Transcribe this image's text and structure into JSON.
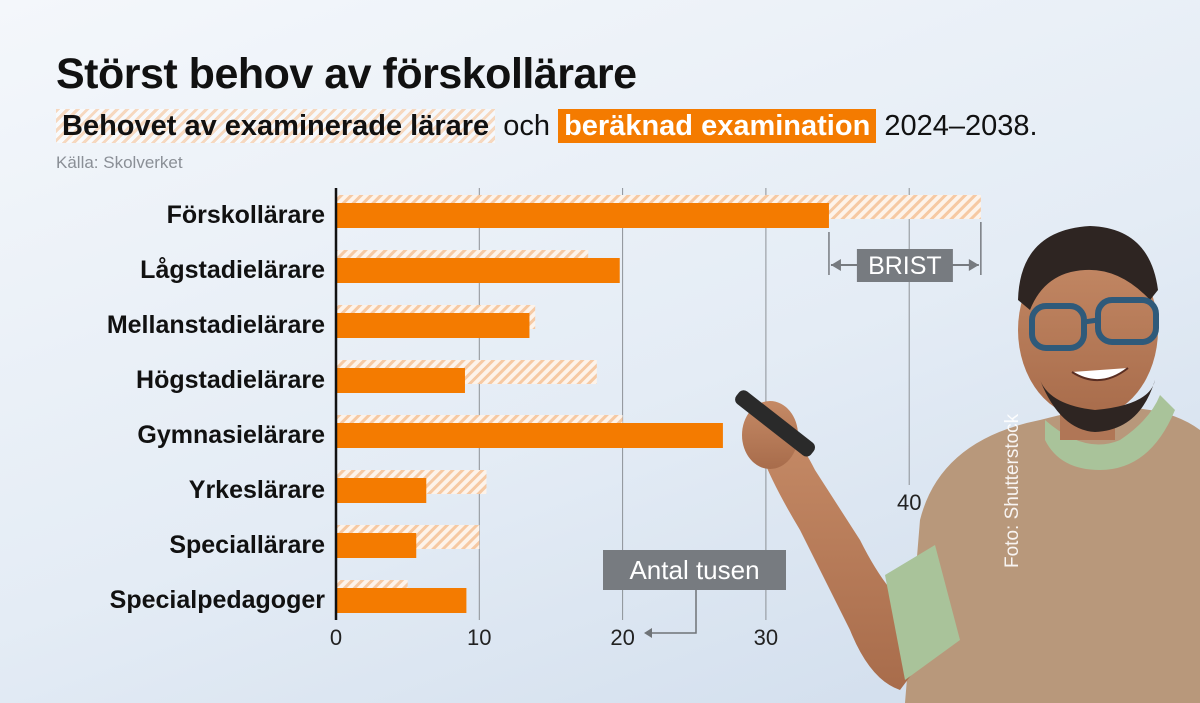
{
  "title": "Störst behov av förskollärare",
  "subtitle": {
    "part1": "Behovet av examinerade lärare",
    "part2": "och",
    "part3": "beräknad examination",
    "part4": "2024–2038."
  },
  "source": "Källa: Skolverket",
  "photo_credit": "Foto: Shutterstock",
  "annotations": {
    "brist": "BRIST",
    "unit": "Antal tusen"
  },
  "colors": {
    "solid": "#f47b00",
    "hatch": "#f6c9a3",
    "label_box": "#777b80"
  },
  "chart_data": {
    "type": "bar",
    "orientation": "horizontal",
    "categories": [
      "Förskollärare",
      "Lågstadielärare",
      "Mellanstadielärare",
      "Högstadielärare",
      "Gymnasielärare",
      "Yrkeslärare",
      "Speciallärare",
      "Specialpedagoger"
    ],
    "series": [
      {
        "name": "Behovet av examinerade lärare",
        "style": "hatched",
        "values": [
          45,
          17.6,
          13.9,
          18.2,
          20,
          10.5,
          10,
          5
        ]
      },
      {
        "name": "beräknad examination",
        "style": "solid",
        "values": [
          34.4,
          19.8,
          13.5,
          9,
          27,
          6.3,
          5.6,
          9.1
        ]
      }
    ],
    "xlim": [
      0,
      45
    ],
    "xticks": [
      0,
      10,
      20,
      30,
      40
    ],
    "xlabel": "Antal tusen",
    "grid": true
  }
}
